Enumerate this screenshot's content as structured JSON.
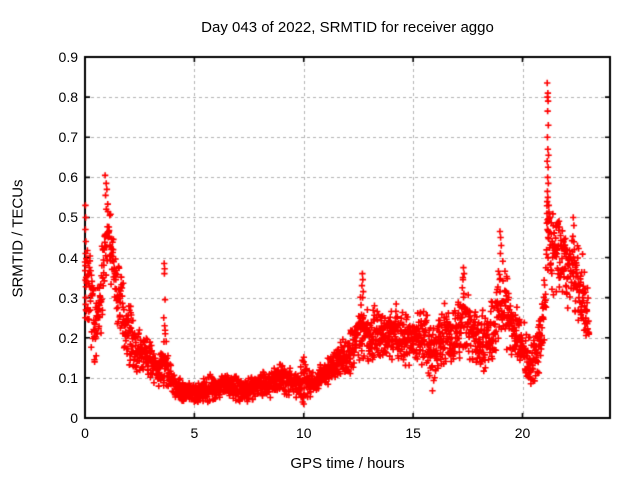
{
  "title": "Day 043 of 2022, SRMTID for receiver aggo",
  "x_axis": {
    "label": "GPS time / hours",
    "min": 0,
    "max": 24,
    "ticks": [
      {
        "value": 0,
        "label": "0"
      },
      {
        "value": 5,
        "label": "5"
      },
      {
        "value": 10,
        "label": "10"
      },
      {
        "value": 15,
        "label": "15"
      },
      {
        "value": 20,
        "label": "20"
      }
    ]
  },
  "y_axis": {
    "label": "SRMTID / TECUs",
    "min": 0,
    "max": 0.9,
    "ticks": [
      {
        "value": 0.0,
        "label": "0"
      },
      {
        "value": 0.1,
        "label": "0.1"
      },
      {
        "value": 0.2,
        "label": "0.2"
      },
      {
        "value": 0.3,
        "label": "0.3"
      },
      {
        "value": 0.4,
        "label": "0.4"
      },
      {
        "value": 0.5,
        "label": "0.5"
      },
      {
        "value": 0.6,
        "label": "0.6"
      },
      {
        "value": 0.7,
        "label": "0.7"
      },
      {
        "value": 0.8,
        "label": "0.8"
      },
      {
        "value": 0.9,
        "label": "0.9"
      }
    ]
  },
  "colors": {
    "marker": "#ff0000",
    "grid": "#b3b3b3",
    "border": "#000000",
    "text": "#000000",
    "background": "#ffffff"
  },
  "chart_data": {
    "type": "scatter",
    "marker": "plus",
    "title": "Day 043 of 2022, SRMTID for receiver aggo",
    "xlabel": "GPS time / hours",
    "ylabel": "SRMTID / TECUs",
    "xlim": [
      0,
      24
    ],
    "ylim": [
      0,
      0.9
    ],
    "grid": true,
    "legend": "none",
    "data_time_range_hours": [
      0,
      23.05
    ],
    "max_point": [
      21.13,
      0.835
    ],
    "envelope_bins": [
      [
        0.0,
        0.22,
        0.545
      ],
      [
        0.15,
        0.22,
        0.45
      ],
      [
        0.3,
        0.14,
        0.38
      ],
      [
        0.5,
        0.12,
        0.32
      ],
      [
        0.7,
        0.15,
        0.38
      ],
      [
        0.85,
        0.3,
        0.5
      ],
      [
        0.95,
        0.35,
        0.6
      ],
      [
        1.1,
        0.33,
        0.56
      ],
      [
        1.25,
        0.3,
        0.48
      ],
      [
        1.45,
        0.22,
        0.44
      ],
      [
        1.7,
        0.16,
        0.35
      ],
      [
        2.0,
        0.12,
        0.3
      ],
      [
        2.3,
        0.11,
        0.24
      ],
      [
        2.6,
        0.1,
        0.22
      ],
      [
        2.9,
        0.09,
        0.21
      ],
      [
        3.2,
        0.08,
        0.18
      ],
      [
        3.5,
        0.07,
        0.17
      ],
      [
        3.7,
        0.07,
        0.25
      ],
      [
        3.9,
        0.05,
        0.14
      ],
      [
        4.2,
        0.04,
        0.12
      ],
      [
        4.5,
        0.035,
        0.1
      ],
      [
        5.0,
        0.03,
        0.095
      ],
      [
        5.5,
        0.035,
        0.105
      ],
      [
        6.0,
        0.04,
        0.115
      ],
      [
        6.5,
        0.045,
        0.115
      ],
      [
        7.0,
        0.04,
        0.105
      ],
      [
        7.5,
        0.04,
        0.11
      ],
      [
        8.0,
        0.045,
        0.12
      ],
      [
        8.5,
        0.05,
        0.125
      ],
      [
        9.0,
        0.06,
        0.15
      ],
      [
        9.4,
        0.055,
        0.13
      ],
      [
        9.7,
        0.045,
        0.11
      ],
      [
        10.0,
        0.035,
        0.16
      ],
      [
        10.3,
        0.05,
        0.12
      ],
      [
        10.6,
        0.06,
        0.13
      ],
      [
        11.0,
        0.07,
        0.15
      ],
      [
        11.4,
        0.09,
        0.18
      ],
      [
        11.8,
        0.1,
        0.2
      ],
      [
        12.1,
        0.1,
        0.22
      ],
      [
        12.4,
        0.12,
        0.26
      ],
      [
        12.65,
        0.14,
        0.36
      ],
      [
        12.8,
        0.13,
        0.3
      ],
      [
        13.0,
        0.12,
        0.27
      ],
      [
        13.3,
        0.14,
        0.3
      ],
      [
        13.6,
        0.14,
        0.28
      ],
      [
        13.9,
        0.13,
        0.27
      ],
      [
        14.2,
        0.14,
        0.3
      ],
      [
        14.5,
        0.13,
        0.28
      ],
      [
        14.8,
        0.12,
        0.26
      ],
      [
        15.1,
        0.13,
        0.28
      ],
      [
        15.4,
        0.12,
        0.3
      ],
      [
        15.7,
        0.1,
        0.26
      ],
      [
        15.9,
        0.06,
        0.24
      ],
      [
        16.2,
        0.1,
        0.27
      ],
      [
        16.5,
        0.12,
        0.3
      ],
      [
        16.8,
        0.1,
        0.28
      ],
      [
        17.1,
        0.12,
        0.33
      ],
      [
        17.35,
        0.13,
        0.375
      ],
      [
        17.6,
        0.12,
        0.3
      ],
      [
        17.9,
        0.1,
        0.27
      ],
      [
        18.2,
        0.11,
        0.28
      ],
      [
        18.5,
        0.12,
        0.3
      ],
      [
        18.8,
        0.15,
        0.35
      ],
      [
        19.0,
        0.18,
        0.45
      ],
      [
        19.2,
        0.16,
        0.38
      ],
      [
        19.5,
        0.14,
        0.33
      ],
      [
        19.8,
        0.12,
        0.28
      ],
      [
        20.1,
        0.09,
        0.24
      ],
      [
        20.4,
        0.07,
        0.2
      ],
      [
        20.7,
        0.1,
        0.24
      ],
      [
        20.9,
        0.14,
        0.3
      ],
      [
        21.05,
        0.2,
        0.42
      ],
      [
        21.15,
        0.3,
        0.68
      ],
      [
        21.3,
        0.28,
        0.55
      ],
      [
        21.5,
        0.3,
        0.52
      ],
      [
        21.7,
        0.32,
        0.5
      ],
      [
        21.9,
        0.28,
        0.48
      ],
      [
        22.1,
        0.26,
        0.46
      ],
      [
        22.3,
        0.25,
        0.5
      ],
      [
        22.5,
        0.22,
        0.45
      ],
      [
        22.7,
        0.18,
        0.42
      ],
      [
        22.85,
        0.16,
        0.4
      ],
      [
        23.05,
        0.15,
        0.32
      ]
    ],
    "outlier_points": [
      [
        0.02,
        0.53
      ],
      [
        0.03,
        0.5
      ],
      [
        0.02,
        0.47
      ],
      [
        0.04,
        0.44
      ],
      [
        0.03,
        0.41
      ],
      [
        0.02,
        0.38
      ],
      [
        0.05,
        0.35
      ],
      [
        0.03,
        0.3
      ],
      [
        0.04,
        0.27
      ],
      [
        0.02,
        0.25
      ],
      [
        0.92,
        0.605
      ],
      [
        0.97,
        0.585
      ],
      [
        1.0,
        0.57
      ],
      [
        0.94,
        0.555
      ],
      [
        3.62,
        0.385
      ],
      [
        3.64,
        0.372
      ],
      [
        3.63,
        0.36
      ],
      [
        3.66,
        0.295
      ],
      [
        3.6,
        0.25
      ],
      [
        3.64,
        0.23
      ],
      [
        3.67,
        0.21
      ],
      [
        3.61,
        0.19
      ],
      [
        9.95,
        0.04
      ],
      [
        9.98,
        0.05
      ],
      [
        10.0,
        0.035
      ],
      [
        12.68,
        0.36
      ],
      [
        12.7,
        0.345
      ],
      [
        12.66,
        0.33
      ],
      [
        12.72,
        0.315
      ],
      [
        12.69,
        0.3
      ],
      [
        17.3,
        0.375
      ],
      [
        17.33,
        0.36
      ],
      [
        17.28,
        0.345
      ],
      [
        18.97,
        0.465
      ],
      [
        19.0,
        0.45
      ],
      [
        19.03,
        0.43
      ],
      [
        18.99,
        0.41
      ],
      [
        21.13,
        0.835
      ],
      [
        21.16,
        0.81
      ],
      [
        21.14,
        0.8
      ],
      [
        21.17,
        0.79
      ],
      [
        21.15,
        0.765
      ],
      [
        21.18,
        0.73
      ],
      [
        21.14,
        0.7
      ],
      [
        21.16,
        0.67
      ],
      [
        21.19,
        0.655
      ],
      [
        21.13,
        0.64
      ],
      [
        21.17,
        0.625
      ],
      [
        21.15,
        0.6
      ],
      [
        21.18,
        0.585
      ],
      [
        21.14,
        0.565
      ],
      [
        21.16,
        0.55
      ],
      [
        21.2,
        0.53
      ],
      [
        21.12,
        0.51
      ],
      [
        21.18,
        0.49
      ],
      [
        21.15,
        0.47
      ],
      [
        21.17,
        0.45
      ],
      [
        22.32,
        0.5
      ],
      [
        22.35,
        0.48
      ]
    ],
    "n_points": 2400,
    "seed": 7
  }
}
